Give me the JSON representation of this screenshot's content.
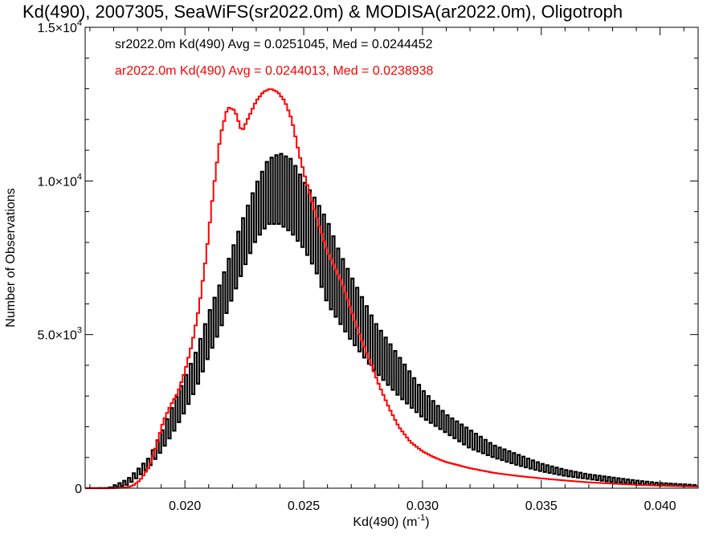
{
  "chart_data": {
    "type": "histogram",
    "title": "Kd(490), 2007305, SeaWiFS(sr2022.0m) & MODISA(ar2022.0m), Oligotroph",
    "xlabel": "Kd(490) (m",
    "xlabel_superscript": "-1",
    "xlabel_suffix": ")",
    "ylabel": "Number of Observations",
    "xlim": [
      0.0158,
      0.0416
    ],
    "ylim": [
      0,
      15000
    ],
    "x_ticks": [
      {
        "value": 0.02,
        "label": "0.020"
      },
      {
        "value": 0.025,
        "label": "0.025"
      },
      {
        "value": 0.03,
        "label": "0.030"
      },
      {
        "value": 0.035,
        "label": "0.035"
      },
      {
        "value": 0.04,
        "label": "0.040"
      }
    ],
    "y_ticks": [
      {
        "value": 0,
        "mantissa": "0",
        "exponent": ""
      },
      {
        "value": 5000,
        "mantissa": "5.0×10",
        "exponent": "3"
      },
      {
        "value": 10000,
        "mantissa": "1.0×10",
        "exponent": "4"
      },
      {
        "value": 15000,
        "mantissa": "1.5×10",
        "exponent": "4"
      }
    ],
    "annotations": [
      {
        "text": "sr2022.0m Kd(490) Avg = 0.0251045, Med = 0.0244452",
        "color": "#000000"
      },
      {
        "text": "ar2022.0m Kd(490) Avg = 0.0244013, Med = 0.0238938",
        "color": "#ff0000"
      }
    ],
    "series": [
      {
        "color": "#000000",
        "style": "oscillating-step",
        "envelope": {
          "x": [
            0.0158,
            0.0168,
            0.0172,
            0.0176,
            0.018,
            0.0185,
            0.019,
            0.0195,
            0.02,
            0.0205,
            0.021,
            0.0215,
            0.022,
            0.0225,
            0.023,
            0.0235,
            0.024,
            0.0245,
            0.025,
            0.0255,
            0.026,
            0.0265,
            0.027,
            0.028,
            0.029,
            0.03,
            0.031,
            0.032,
            0.033,
            0.034,
            0.035,
            0.036,
            0.037,
            0.038,
            0.039,
            0.04,
            0.0416
          ],
          "high": [
            0,
            10,
            150,
            300,
            600,
            1000,
            1800,
            2700,
            3600,
            4500,
            5700,
            6700,
            7800,
            8900,
            9900,
            10700,
            10900,
            10700,
            10000,
            9400,
            8700,
            7700,
            6900,
            5400,
            4300,
            3200,
            2400,
            1900,
            1400,
            1100,
            800,
            600,
            450,
            350,
            250,
            170,
            100
          ],
          "low": [
            0,
            0,
            40,
            120,
            350,
            700,
            1200,
            1800,
            2500,
            3300,
            4300,
            5200,
            6200,
            7200,
            8100,
            8600,
            8600,
            8300,
            7800,
            7100,
            6000,
            5400,
            4800,
            3800,
            3000,
            2300,
            1800,
            1300,
            1000,
            750,
            550,
            400,
            300,
            200,
            150,
            100,
            60
          ]
        }
      },
      {
        "color": "#ff0000",
        "style": "step",
        "x": [
          0.0158,
          0.017,
          0.0175,
          0.0178,
          0.0181,
          0.0185,
          0.0188,
          0.0191,
          0.0194,
          0.0197,
          0.02,
          0.0203,
          0.0206,
          0.0209,
          0.0212,
          0.0215,
          0.0218,
          0.0221,
          0.0224,
          0.0227,
          0.023,
          0.0233,
          0.0236,
          0.0239,
          0.0242,
          0.0245,
          0.0248,
          0.0251,
          0.0254,
          0.0257,
          0.026,
          0.0263,
          0.0266,
          0.027,
          0.0274,
          0.0278,
          0.0282,
          0.0286,
          0.029,
          0.0295,
          0.03,
          0.0305,
          0.031,
          0.032,
          0.033,
          0.034,
          0.035,
          0.036,
          0.037,
          0.038,
          0.039,
          0.04,
          0.0416
        ],
        "values": [
          0,
          0,
          20,
          80,
          250,
          700,
          1400,
          2200,
          2700,
          3100,
          3800,
          4700,
          5900,
          7600,
          9700,
          11500,
          12400,
          12300,
          11600,
          12100,
          12600,
          12900,
          13000,
          12900,
          12600,
          12000,
          10900,
          10000,
          9200,
          8400,
          7700,
          7200,
          6700,
          5800,
          4900,
          4100,
          3300,
          2600,
          2000,
          1500,
          1200,
          1000,
          850,
          650,
          500,
          400,
          320,
          250,
          190,
          150,
          110,
          80,
          50
        ]
      }
    ]
  }
}
